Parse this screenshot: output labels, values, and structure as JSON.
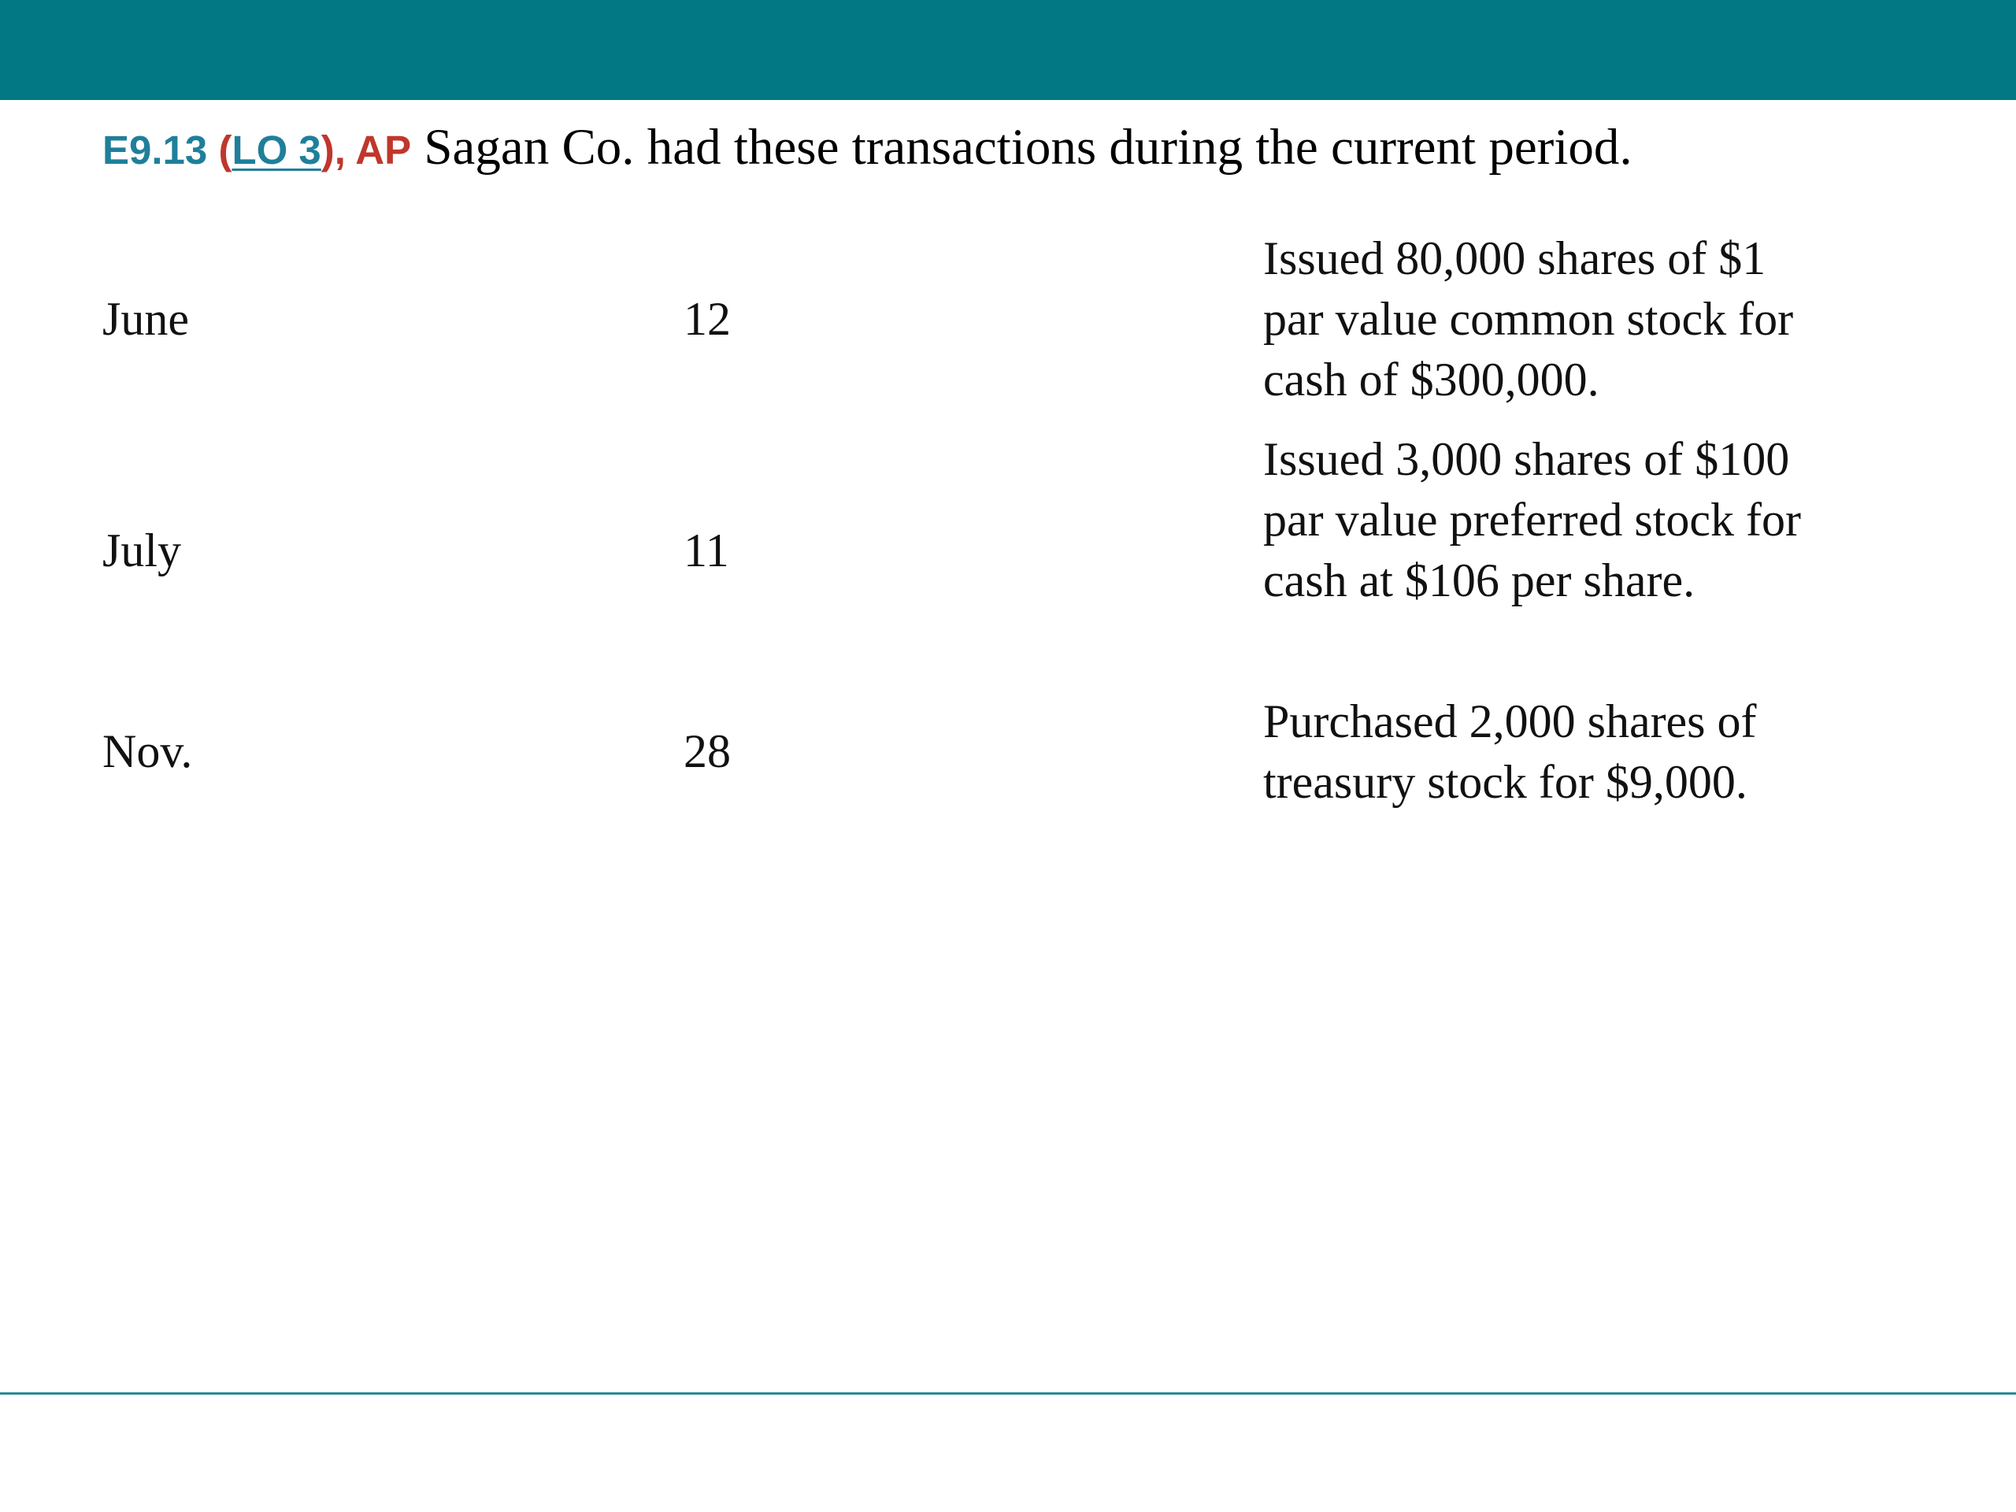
{
  "heading": {
    "exercise_code": "E9.13",
    "open_paren": "(",
    "lo_link": "LO 3",
    "close_paren_comma": "),",
    "ap_tag": "AP",
    "prompt": "Sagan Co. had these transactions during the current period."
  },
  "transactions": [
    {
      "month": "June",
      "day": "12",
      "description": "Issued 80,000 shares of $1 par value common stock for cash of $300,000."
    },
    {
      "month": "July",
      "day": "11",
      "description": "Issued 3,000 shares of $100 par value preferred stock for cash at $106 per share."
    },
    {
      "month": "Nov.",
      "day": "28",
      "description": "Purchased 2,000 shares of treasury stock for $9,000."
    }
  ],
  "colors": {
    "top_bar": "#027884",
    "exercise_code": "#1F7F9A",
    "ap_tag": "#C0362C",
    "bottom_line": "#2A8A93"
  }
}
